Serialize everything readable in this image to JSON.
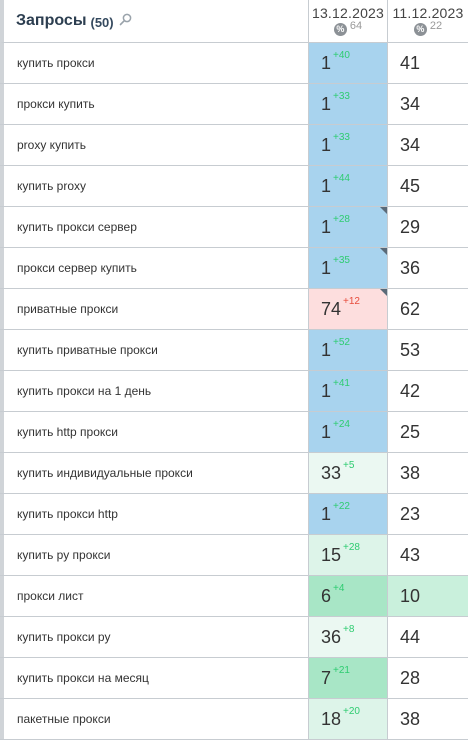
{
  "header": {
    "title": "Запросы",
    "count": "(50)",
    "icon": "search-icon",
    "dates": [
      {
        "date": "13.12.2023",
        "pct": "%",
        "count": "64"
      },
      {
        "date": "11.12.2023",
        "pct": "%",
        "count": "22"
      }
    ]
  },
  "colors": {
    "top": "#a8d3ee",
    "improved_light": "#ebf8f2",
    "improved": "#ddf4e9",
    "improved_strong": "#a8e6c6",
    "declined": "#fddede",
    "improved_prev": "#c9f0dc"
  },
  "rows": [
    {
      "query": "купить прокси",
      "pos1": "1",
      "delta": "+40",
      "dir": "up",
      "pos2": "41",
      "bg1": "top",
      "bg2": "",
      "flag": false
    },
    {
      "query": "прокси купить",
      "pos1": "1",
      "delta": "+33",
      "dir": "up",
      "pos2": "34",
      "bg1": "top",
      "bg2": "",
      "flag": false
    },
    {
      "query": "proxy купить",
      "pos1": "1",
      "delta": "+33",
      "dir": "up",
      "pos2": "34",
      "bg1": "top",
      "bg2": "",
      "flag": false
    },
    {
      "query": "купить proxy",
      "pos1": "1",
      "delta": "+44",
      "dir": "up",
      "pos2": "45",
      "bg1": "top",
      "bg2": "",
      "flag": false
    },
    {
      "query": "купить прокси сервер",
      "pos1": "1",
      "delta": "+28",
      "dir": "up",
      "pos2": "29",
      "bg1": "top",
      "bg2": "",
      "flag": true
    },
    {
      "query": "прокси сервер купить",
      "pos1": "1",
      "delta": "+35",
      "dir": "up",
      "pos2": "36",
      "bg1": "top",
      "bg2": "",
      "flag": true
    },
    {
      "query": "приватные прокси",
      "pos1": "74",
      "delta": "+12",
      "dir": "down",
      "pos2": "62",
      "bg1": "declined",
      "bg2": "",
      "flag": true
    },
    {
      "query": "купить приватные прокси",
      "pos1": "1",
      "delta": "+52",
      "dir": "up",
      "pos2": "53",
      "bg1": "top",
      "bg2": "",
      "flag": false
    },
    {
      "query": "купить прокси на 1 день",
      "pos1": "1",
      "delta": "+41",
      "dir": "up",
      "pos2": "42",
      "bg1": "top",
      "bg2": "",
      "flag": false
    },
    {
      "query": "купить http прокси",
      "pos1": "1",
      "delta": "+24",
      "dir": "up",
      "pos2": "25",
      "bg1": "top",
      "bg2": "",
      "flag": false
    },
    {
      "query": "купить индивидуальные прокси",
      "pos1": "33",
      "delta": "+5",
      "dir": "up",
      "pos2": "38",
      "bg1": "improved_light",
      "bg2": "",
      "flag": false
    },
    {
      "query": "купить прокси http",
      "pos1": "1",
      "delta": "+22",
      "dir": "up",
      "pos2": "23",
      "bg1": "top",
      "bg2": "",
      "flag": false
    },
    {
      "query": "купить ру прокси",
      "pos1": "15",
      "delta": "+28",
      "dir": "up",
      "pos2": "43",
      "bg1": "improved",
      "bg2": "",
      "flag": false
    },
    {
      "query": "прокси лист",
      "pos1": "6",
      "delta": "+4",
      "dir": "up",
      "pos2": "10",
      "bg1": "improved_strong",
      "bg2": "improved_prev",
      "flag": false
    },
    {
      "query": "купить прокси ру",
      "pos1": "36",
      "delta": "+8",
      "dir": "up",
      "pos2": "44",
      "bg1": "improved_light",
      "bg2": "",
      "flag": false
    },
    {
      "query": "купить прокси на месяц",
      "pos1": "7",
      "delta": "+21",
      "dir": "up",
      "pos2": "28",
      "bg1": "improved_strong",
      "bg2": "",
      "flag": false
    },
    {
      "query": "пакетные прокси",
      "pos1": "18",
      "delta": "+20",
      "dir": "up",
      "pos2": "38",
      "bg1": "improved",
      "bg2": "",
      "flag": false
    }
  ]
}
